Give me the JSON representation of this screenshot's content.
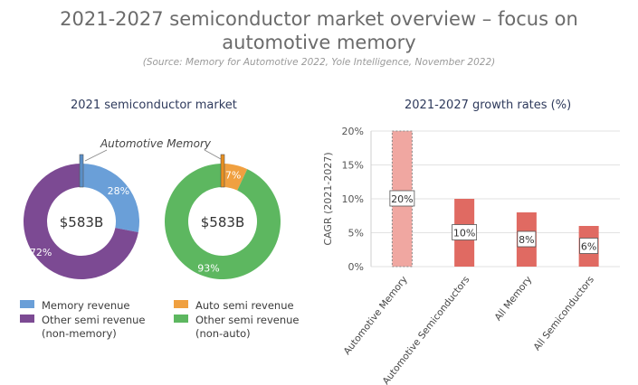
{
  "header": {
    "title_line1": "2021-2027 semiconductor market overview – focus on",
    "title_line2": "automotive memory",
    "source": "(Source: Memory for Automotive 2022, Yole Intelligence, November 2022)"
  },
  "colors": {
    "memory": "#6a9fd8",
    "other_memory": "#7c4a93",
    "auto": "#f0a040",
    "other_auto": "#5db760",
    "bar_main": "#e06a62",
    "bar_highlight": "#f0a7a1"
  },
  "left": {
    "title": "2021 semiconductor market",
    "callout": "Automotive Memory",
    "legend": [
      {
        "label": "Memory revenue",
        "color": "#6a9fd8"
      },
      {
        "label": "Other semi revenue",
        "label2": "(non-memory)",
        "color": "#7c4a93"
      },
      {
        "label": "Auto semi revenue",
        "color": "#f0a040"
      },
      {
        "label": "Other semi revenue",
        "label2": "(non-auto)",
        "color": "#5db760"
      }
    ]
  },
  "right": {
    "title": "2021-2027 growth rates (%)"
  },
  "chart_data": [
    {
      "type": "pie",
      "center_label": "$583B",
      "slices": [
        {
          "label": "Memory revenue",
          "value": 28,
          "label_text": "28%"
        },
        {
          "label": "Other semi revenue (non-memory)",
          "value": 72,
          "label_text": "72%"
        }
      ],
      "highlight": "Automotive Memory"
    },
    {
      "type": "pie",
      "center_label": "$583B",
      "slices": [
        {
          "label": "Auto semi revenue",
          "value": 7,
          "label_text": "7%"
        },
        {
          "label": "Other semi revenue (non-auto)",
          "value": 93,
          "label_text": "93%"
        }
      ],
      "highlight": "Automotive Memory"
    },
    {
      "type": "bar",
      "title": "2021-2027 growth rates (%)",
      "ylabel": "CAGR (2021-2027)",
      "categories": [
        "Automotive Memory",
        "Automotive Semiconductors",
        "All Memory",
        "All Semiconductors"
      ],
      "values": [
        20,
        10,
        8,
        6
      ],
      "value_labels": [
        "20%",
        "10%",
        "8%",
        "6%"
      ],
      "y_ticks": [
        "0%",
        "5%",
        "10%",
        "15%",
        "20%"
      ],
      "ylim": [
        0,
        20
      ],
      "grid": true
    }
  ]
}
